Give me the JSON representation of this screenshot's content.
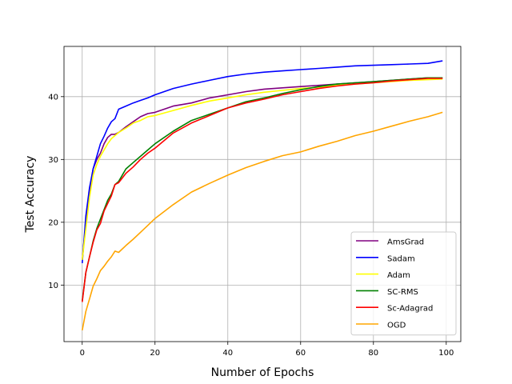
{
  "chart_data": {
    "type": "line",
    "xlabel": "Number of Epochs",
    "ylabel": "Test Accuracy",
    "xlim": [
      -5,
      104
    ],
    "ylim": [
      1,
      48
    ],
    "xticks": [
      0,
      20,
      40,
      60,
      80,
      100
    ],
    "yticks": [
      10,
      20,
      30,
      40
    ],
    "grid": true,
    "legend_position": "lower-right",
    "series": [
      {
        "name": "AmsGrad",
        "color": "#800080",
        "x": [
          0,
          1,
          2,
          3,
          4,
          5,
          6,
          7,
          8,
          9,
          10,
          12,
          14,
          16,
          18,
          20,
          25,
          30,
          35,
          40,
          45,
          50,
          55,
          60,
          65,
          70,
          75,
          80,
          85,
          90,
          95,
          99
        ],
        "y": [
          14,
          20,
          25,
          28.5,
          30,
          31,
          32.5,
          33.5,
          34,
          34,
          34.3,
          35.2,
          36,
          36.8,
          37.3,
          37.5,
          38.5,
          39,
          39.8,
          40.3,
          40.8,
          41.2,
          41.4,
          41.6,
          41.8,
          42,
          42.2,
          42.4,
          42.6,
          42.8,
          43,
          43
        ]
      },
      {
        "name": "Sadam",
        "color": "#0000ff",
        "x": [
          0,
          1,
          2,
          3,
          4,
          5,
          6,
          7,
          8,
          9,
          10,
          12,
          14,
          16,
          18,
          20,
          25,
          30,
          35,
          40,
          45,
          50,
          55,
          60,
          65,
          70,
          75,
          80,
          85,
          90,
          95,
          99
        ],
        "y": [
          13.5,
          21,
          25.5,
          28.5,
          30.5,
          32.5,
          33.7,
          35,
          36,
          36.5,
          38,
          38.5,
          39,
          39.4,
          39.8,
          40.3,
          41.3,
          42,
          42.6,
          43.2,
          43.6,
          43.9,
          44.1,
          44.3,
          44.5,
          44.7,
          44.9,
          45,
          45.1,
          45.2,
          45.3,
          45.7
        ]
      },
      {
        "name": "Adam",
        "color": "#ffff00",
        "x": [
          0,
          1,
          2,
          3,
          4,
          5,
          6,
          7,
          8,
          9,
          10,
          12,
          14,
          16,
          18,
          20,
          25,
          30,
          35,
          40,
          45,
          50,
          55,
          60,
          65,
          70,
          75,
          80,
          85,
          90,
          95,
          99
        ],
        "y": [
          14,
          19,
          24,
          27.5,
          29.2,
          30.5,
          31.5,
          32.5,
          33.3,
          33.8,
          34.3,
          35,
          35.8,
          36.2,
          36.8,
          37,
          37.8,
          38.6,
          39.3,
          39.8,
          40.3,
          40.7,
          41,
          41.3,
          41.5,
          41.8,
          42,
          42.2,
          42.4,
          42.6,
          42.7,
          42.8
        ]
      },
      {
        "name": "SC-RMS",
        "color": "#008000",
        "x": [
          0,
          1,
          2,
          3,
          4,
          5,
          6,
          7,
          8,
          9,
          10,
          12,
          14,
          16,
          18,
          20,
          25,
          30,
          35,
          40,
          45,
          50,
          55,
          60,
          65,
          70,
          75,
          80,
          85,
          90,
          95,
          99
        ],
        "y": [
          7.5,
          12,
          14.5,
          17,
          19,
          20.5,
          22,
          23.5,
          24.5,
          26,
          26.5,
          28.5,
          29.5,
          30.5,
          31.5,
          32.5,
          34.5,
          36.2,
          37.2,
          38.2,
          39.2,
          39.8,
          40.5,
          41.1,
          41.6,
          42,
          42.2,
          42.4,
          42.6,
          42.8,
          43,
          43
        ]
      },
      {
        "name": "Sc-Adagrad",
        "color": "#ff0000",
        "x": [
          0,
          1,
          2,
          3,
          4,
          5,
          6,
          7,
          8,
          9,
          10,
          12,
          14,
          16,
          18,
          20,
          25,
          30,
          35,
          40,
          45,
          50,
          55,
          60,
          65,
          70,
          75,
          80,
          85,
          90,
          95,
          99
        ],
        "y": [
          7.3,
          12,
          14.5,
          16.8,
          18.8,
          19.8,
          21.8,
          23,
          24.2,
          26,
          26.3,
          27.8,
          28.8,
          30,
          31,
          31.8,
          34.2,
          35.8,
          37,
          38.2,
          39,
          39.6,
          40.3,
          40.8,
          41.3,
          41.7,
          42,
          42.2,
          42.5,
          42.7,
          42.9,
          42.9
        ]
      },
      {
        "name": "OGD",
        "color": "#ffa500",
        "x": [
          0,
          1,
          2,
          3,
          4,
          5,
          6,
          7,
          8,
          9,
          10,
          12,
          14,
          16,
          18,
          20,
          25,
          30,
          35,
          40,
          45,
          50,
          55,
          60,
          65,
          70,
          75,
          80,
          85,
          90,
          95,
          99
        ],
        "y": [
          2.8,
          5.8,
          7.8,
          9.8,
          11,
          12.3,
          13,
          13.8,
          14.5,
          15.4,
          15.2,
          16.3,
          17.3,
          18.4,
          19.5,
          20.6,
          22.8,
          24.8,
          26.2,
          27.5,
          28.7,
          29.7,
          30.6,
          31.2,
          32.1,
          32.9,
          33.8,
          34.5,
          35.3,
          36.1,
          36.8,
          37.5
        ]
      }
    ]
  }
}
